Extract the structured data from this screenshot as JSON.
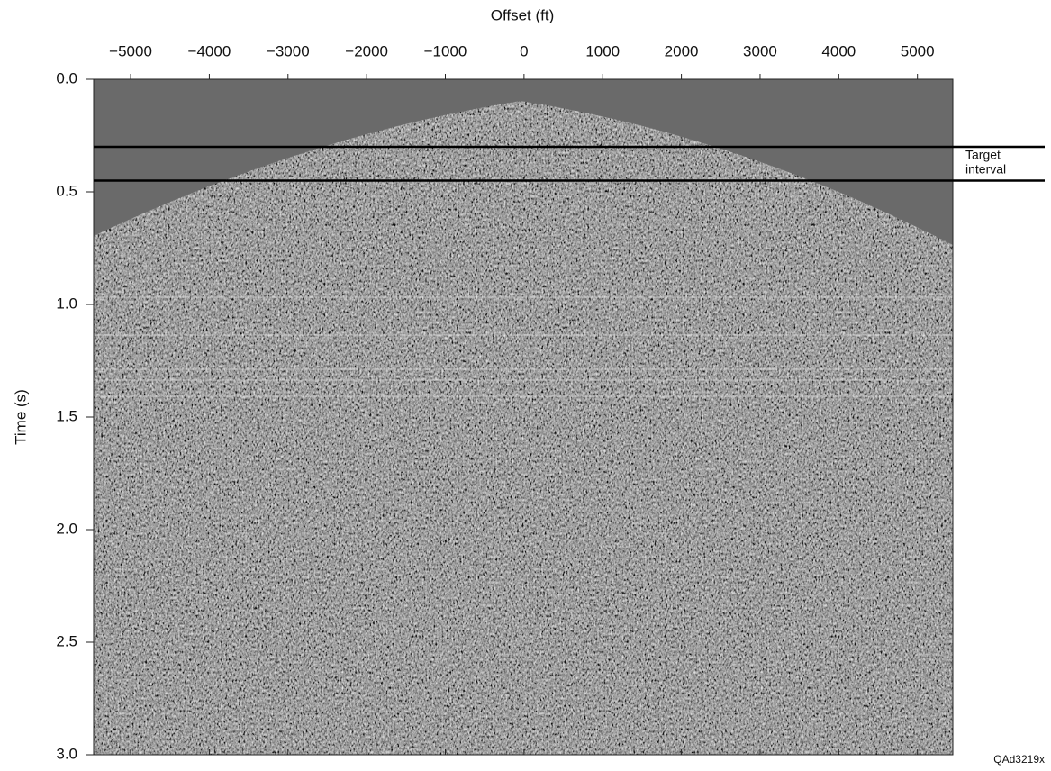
{
  "chart_data": {
    "type": "seismic",
    "x_label": "Offset (ft)",
    "y_label": "Time (s)",
    "xlim": [
      -5470,
      5450
    ],
    "ylim": [
      0,
      3
    ],
    "xticks": [
      {
        "value": -5000,
        "label": "−5000"
      },
      {
        "value": -4000,
        "label": "−4000"
      },
      {
        "value": -3000,
        "label": "−3000"
      },
      {
        "value": -2000,
        "label": "−2000"
      },
      {
        "value": -1000,
        "label": "−1000"
      },
      0,
      1000,
      2000,
      3000,
      4000,
      5000
    ],
    "yticks": [
      {
        "value": 0,
        "label": "0.0"
      },
      0.5,
      {
        "value": 1,
        "label": "1.0"
      },
      1.5,
      {
        "value": 2,
        "label": "2.0"
      },
      2.5,
      {
        "value": 3,
        "label": "3.0"
      }
    ],
    "y_inverted": true,
    "hlines": [
      0.3,
      0.45
    ],
    "line_color": "#000000",
    "annotation": [
      "Target",
      "interval"
    ],
    "figure_id": "QAd3219x"
  }
}
